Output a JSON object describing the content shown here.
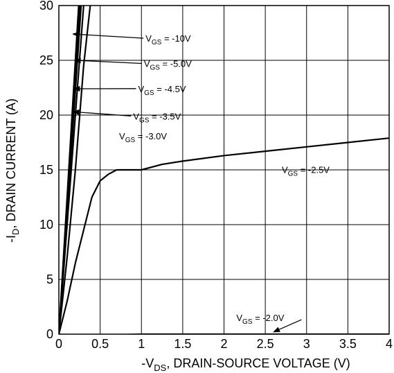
{
  "chart_data": {
    "type": "line",
    "title": "",
    "xlabel": {
      "prefix": "-V",
      "sub": "DS",
      "suffix": ", DRAIN-SOURCE VOLTAGE (V)"
    },
    "ylabel": {
      "prefix": "-I",
      "sub": "D",
      "suffix": ", DRAIN CURRENT (A)"
    },
    "xlim": [
      0,
      4
    ],
    "ylim": [
      0,
      30
    ],
    "x_ticks": [
      {
        "v": 0,
        "label": "0"
      },
      {
        "v": 0.5,
        "label": "0.5"
      },
      {
        "v": 1,
        "label": "1"
      },
      {
        "v": 1.5,
        "label": "1.5"
      },
      {
        "v": 2,
        "label": "2"
      },
      {
        "v": 2.5,
        "label": "2.5"
      },
      {
        "v": 3,
        "label": "3"
      },
      {
        "v": 3.5,
        "label": "3.5"
      },
      {
        "v": 4,
        "label": "4"
      }
    ],
    "y_ticks": [
      {
        "v": 0,
        "label": "0"
      },
      {
        "v": 5,
        "label": "5"
      },
      {
        "v": 10,
        "label": "10"
      },
      {
        "v": 15,
        "label": "15"
      },
      {
        "v": 20,
        "label": "20"
      },
      {
        "v": 25,
        "label": "25"
      },
      {
        "v": 30,
        "label": "30"
      }
    ],
    "grid": true,
    "color": "#000000",
    "series": [
      {
        "vgs": "-10V",
        "points": [
          [
            0,
            0
          ],
          [
            0.24,
            30
          ]
        ]
      },
      {
        "vgs": "-5.0V",
        "points": [
          [
            0,
            0
          ],
          [
            0.255,
            30
          ]
        ]
      },
      {
        "vgs": "-4.5V",
        "points": [
          [
            0,
            0
          ],
          [
            0.27,
            30
          ]
        ]
      },
      {
        "vgs": "-3.5V",
        "points": [
          [
            0,
            0
          ],
          [
            0.3,
            30
          ]
        ]
      },
      {
        "vgs": "-3.0V",
        "points": [
          [
            0,
            0
          ],
          [
            0.1,
            7
          ],
          [
            0.2,
            15
          ],
          [
            0.3,
            24.5
          ],
          [
            0.38,
            30
          ]
        ]
      },
      {
        "vgs": "-2.5V",
        "points": [
          [
            0,
            0
          ],
          [
            0.1,
            3
          ],
          [
            0.2,
            6.5
          ],
          [
            0.3,
            9.5
          ],
          [
            0.4,
            12.5
          ],
          [
            0.5,
            14
          ],
          [
            0.6,
            14.6
          ],
          [
            0.7,
            15
          ],
          [
            1,
            15
          ],
          [
            1.25,
            15.5
          ],
          [
            1.5,
            15.8
          ],
          [
            2,
            16.3
          ],
          [
            2.5,
            16.7
          ],
          [
            3,
            17.1
          ],
          [
            3.5,
            17.5
          ],
          [
            4,
            17.9
          ]
        ]
      },
      {
        "vgs": "-2.0V",
        "points": [
          [
            0,
            0
          ],
          [
            0.2,
            -0.25
          ],
          [
            0.5,
            -0.1
          ],
          [
            1,
            0
          ],
          [
            4,
            0
          ]
        ]
      }
    ],
    "annotations": [
      {
        "prefix": "V",
        "sub": "GS",
        "suffix": " = -10V",
        "series": 0,
        "x": 1.05,
        "y": 26.7,
        "arrow_to": [
          0.17,
          27.4
        ]
      },
      {
        "prefix": "V",
        "sub": "GS",
        "suffix": " = -5.0V",
        "series": 1,
        "x": 1.03,
        "y": 24.4,
        "arrow_to": [
          0.19,
          25
        ]
      },
      {
        "prefix": "V",
        "sub": "GS",
        "suffix": " = -4.5V",
        "series": 2,
        "x": 0.96,
        "y": 22.1,
        "arrow_to": [
          0.18,
          22.4
        ]
      },
      {
        "prefix": "V",
        "sub": "GS",
        "suffix": " = -3.5V",
        "series": 3,
        "x": 0.9,
        "y": 19.6,
        "arrow_to": [
          0.17,
          20.3
        ]
      },
      {
        "prefix": "V",
        "sub": "GS",
        "suffix": " = -3.0V",
        "series": 4,
        "x": 0.73,
        "y": 17.8,
        "arrow_to": null
      },
      {
        "prefix": "V",
        "sub": "GS",
        "suffix": " = -2.5V",
        "series": 5,
        "x": 2.7,
        "y": 14.7,
        "arrow_to": null
      },
      {
        "prefix": "V",
        "sub": "GS",
        "suffix": " = -2.0V",
        "series": 6,
        "x": 2.15,
        "y": 1.2,
        "arrow_to": [
          2.6,
          0.2
        ]
      }
    ]
  }
}
